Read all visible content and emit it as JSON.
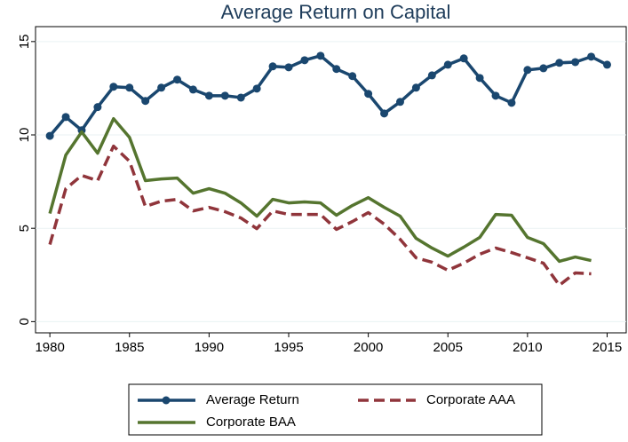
{
  "chart_data": {
    "type": "line",
    "title": "Average Return on Capital",
    "x": [
      1980,
      1981,
      1982,
      1983,
      1984,
      1985,
      1986,
      1987,
      1988,
      1989,
      1990,
      1991,
      1992,
      1993,
      1994,
      1995,
      1996,
      1997,
      1998,
      1999,
      2000,
      2001,
      2002,
      2003,
      2004,
      2005,
      2006,
      2007,
      2008,
      2009,
      2010,
      2011,
      2012,
      2013,
      2014,
      2015
    ],
    "series": [
      {
        "name": "Average Return",
        "color": "#1a476f",
        "marker": "circle",
        "dash": false,
        "values": [
          9.95,
          10.96,
          10.25,
          11.49,
          12.58,
          12.53,
          11.82,
          12.53,
          12.96,
          12.43,
          12.1,
          12.1,
          12.0,
          12.48,
          13.67,
          13.62,
          14.0,
          14.24,
          13.53,
          13.15,
          12.2,
          11.15,
          11.77,
          12.53,
          13.19,
          13.76,
          14.1,
          13.05,
          12.1,
          11.72,
          13.48,
          13.57,
          13.86,
          13.9,
          14.19,
          13.76
        ]
      },
      {
        "name": "Corporate AAA",
        "color": "#90353b",
        "marker": "none",
        "dash": true,
        "values": [
          4.13,
          7.12,
          7.83,
          7.55,
          9.4,
          8.59,
          6.17,
          6.45,
          6.55,
          5.93,
          6.12,
          5.89,
          5.55,
          4.98,
          5.93,
          5.74,
          5.74,
          5.74,
          4.94,
          5.36,
          5.84,
          5.22,
          4.41,
          3.42,
          3.18,
          2.75,
          3.13,
          3.61,
          3.94,
          3.7,
          3.42,
          3.13,
          1.95,
          2.61,
          2.56,
          null
        ]
      },
      {
        "name": "Corporate BAA",
        "color": "#55752f",
        "marker": "none",
        "dash": false,
        "values": [
          5.79,
          8.92,
          10.16,
          9.02,
          10.87,
          9.87,
          7.55,
          7.64,
          7.69,
          6.88,
          7.12,
          6.88,
          6.36,
          5.65,
          6.55,
          6.36,
          6.41,
          6.36,
          5.7,
          6.22,
          6.64,
          6.12,
          5.65,
          4.46,
          3.94,
          3.51,
          3.99,
          4.51,
          5.74,
          5.7,
          4.51,
          4.18,
          3.23,
          3.46,
          3.27,
          null
        ]
      }
    ],
    "xlim": [
      1979.1,
      2016.2
    ],
    "xticks": [
      1980,
      1985,
      1990,
      1995,
      2000,
      2005,
      2010,
      2015
    ],
    "ylim": [
      -0.6,
      15.8
    ],
    "yticks": [
      0,
      5,
      10,
      15
    ],
    "grid": true,
    "legend": "bottom"
  }
}
